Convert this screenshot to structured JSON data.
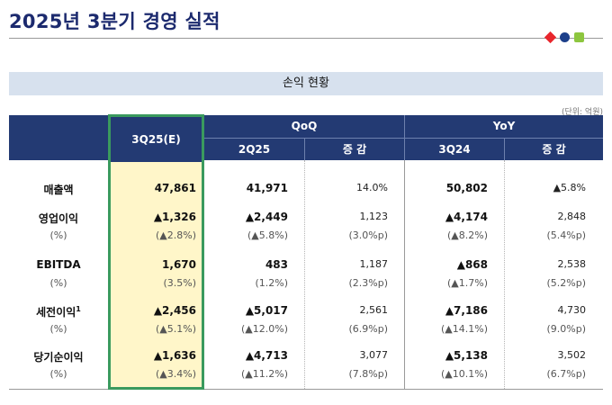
{
  "title": "2025년 3분기 경영 실적",
  "section": "손익 현황",
  "unit": "(단위: 억원)",
  "headers": {
    "current": "3Q25(E)",
    "qoq": "QoQ",
    "yoy": "YoY",
    "q_prev": "2Q25",
    "change1": "증 감",
    "y_prev": "3Q24",
    "change2": "증 감"
  },
  "rows": [
    {
      "label": "매출액",
      "label_sub": "",
      "cur": "47,861",
      "cur_sub": "",
      "q2": "41,971",
      "q2_sub": "",
      "qchg": "14.0%",
      "qchg_sub": "",
      "y3": "50,802",
      "y3_sub": "",
      "ychg": "▲5.8%",
      "ychg_sub": ""
    },
    {
      "label": "영업이익",
      "label_sub": "(%)",
      "cur": "▲1,326",
      "cur_sub": "(▲2.8%)",
      "q2": "▲2,449",
      "q2_sub": "(▲5.8%)",
      "qchg": "1,123",
      "qchg_sub": "(3.0%p)",
      "y3": "▲4,174",
      "y3_sub": "(▲8.2%)",
      "ychg": "2,848",
      "ychg_sub": "(5.4%p)"
    },
    {
      "label": "EBITDA",
      "label_sub": "(%)",
      "cur": "1,670",
      "cur_sub": "(3.5%)",
      "q2": "483",
      "q2_sub": "(1.2%)",
      "qchg": "1,187",
      "qchg_sub": "(2.3%p)",
      "y3": "▲868",
      "y3_sub": "(▲1.7%)",
      "ychg": "2,538",
      "ychg_sub": "(5.2%p)"
    },
    {
      "label": "세전이익",
      "label_sup": "1",
      "label_sub": "(%)",
      "cur": "▲2,456",
      "cur_sub": "(▲5.1%)",
      "q2": "▲5,017",
      "q2_sub": "(▲12.0%)",
      "qchg": "2,561",
      "qchg_sub": "(6.9%p)",
      "y3": "▲7,186",
      "y3_sub": "(▲14.1%)",
      "ychg": "4,730",
      "ychg_sub": "(9.0%p)"
    },
    {
      "label": "당기순이익",
      "label_sub": "(%)",
      "cur": "▲1,636",
      "cur_sub": "(▲3.4%)",
      "q2": "▲4,713",
      "q2_sub": "(▲11.2%)",
      "qchg": "3,077",
      "qchg_sub": "(7.8%p)",
      "y3": "▲5,138",
      "y3_sub": "(▲10.1%)",
      "ychg": "3,502",
      "ychg_sub": "(6.7%p)"
    }
  ],
  "colors": {
    "navy": "#233a73",
    "highlight": "#fff6c9",
    "green_border": "#3a9a5e"
  }
}
